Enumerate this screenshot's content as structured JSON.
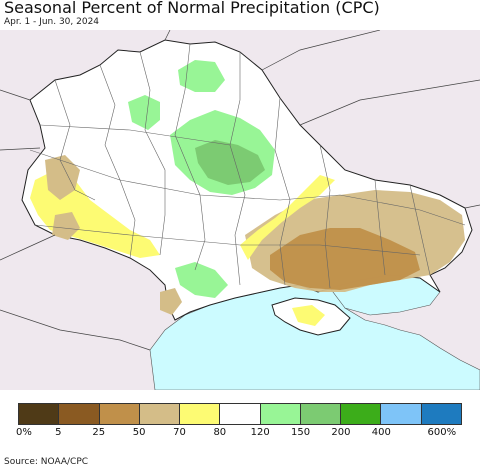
{
  "header": {
    "title": "Seasonal Percent of Normal Precipitation (CPC)",
    "subtitle": "Apr. 1 - Jun. 30, 2024"
  },
  "legend": {
    "colors": [
      "#4f3a17",
      "#8a5a22",
      "#c0904a",
      "#d4bd88",
      "#fdfb73",
      "#ffffff",
      "#98f596",
      "#7ccb72",
      "#3cad1a",
      "#7ec4f8",
      "#1e7bbf"
    ],
    "ticks": [
      "0%",
      "5",
      "25",
      "50",
      "70",
      "80",
      "120",
      "150",
      "200",
      "400",
      "600%"
    ]
  },
  "footer": {
    "source": "Source: NOAA/CPC"
  },
  "map_colors": {
    "outside": "#efe8ee",
    "land": "#ffffff",
    "sea": "#ccfbff",
    "border": "#222222",
    "oblast": "#666666"
  }
}
